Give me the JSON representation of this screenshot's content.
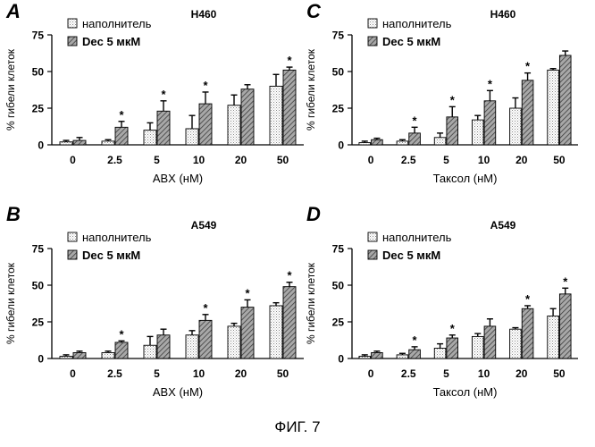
{
  "figure_caption": "ФИГ. 7",
  "colors": {
    "vehicle_fill": "#ffffff",
    "dec_fill": "#9a9a9a",
    "axis": "#000000"
  },
  "chart_data": [
    {
      "panel_letter": "A",
      "type": "bar",
      "title": "H460",
      "xlabel": "ABX (нМ)",
      "ylabel": "% гибели клеток",
      "ylim": [
        0,
        75
      ],
      "yticks": [
        0,
        25,
        50,
        75
      ],
      "categories": [
        "0",
        "2.5",
        "5",
        "10",
        "20",
        "50"
      ],
      "series": [
        {
          "name": "наполнитель",
          "values": [
            2,
            2.5,
            10,
            11,
            27,
            40
          ],
          "errors": [
            1,
            1,
            5,
            9,
            7,
            8
          ]
        },
        {
          "name": "Dec 5 мкМ",
          "values": [
            3,
            12,
            23,
            28,
            38,
            51
          ],
          "errors": [
            2,
            4,
            7,
            8,
            3,
            2
          ]
        }
      ],
      "significance": [
        false,
        true,
        true,
        true,
        false,
        true
      ],
      "significance_mark": "*",
      "legend_position": "top-left"
    },
    {
      "panel_letter": "C",
      "type": "bar",
      "title": "H460",
      "xlabel": "Таксол (нМ)",
      "ylabel": "% гибели клеток",
      "ylim": [
        0,
        75
      ],
      "yticks": [
        0,
        25,
        50,
        75
      ],
      "categories": [
        "0",
        "2.5",
        "5",
        "10",
        "20",
        "50"
      ],
      "series": [
        {
          "name": "наполнитель",
          "values": [
            1.5,
            2.5,
            5,
            17,
            25,
            51
          ],
          "errors": [
            1,
            1,
            3,
            3,
            7,
            1
          ]
        },
        {
          "name": "Dec 5 мкМ",
          "values": [
            3.5,
            8,
            19,
            30,
            44,
            61
          ],
          "errors": [
            1,
            4,
            7,
            7,
            5,
            3
          ]
        }
      ],
      "significance": [
        false,
        true,
        true,
        true,
        true,
        false
      ],
      "significance_mark": "*",
      "legend_position": "top-left"
    },
    {
      "panel_letter": "B",
      "type": "bar",
      "title": "A549",
      "xlabel": "ABX (нМ)",
      "ylabel": "% гибели клеток",
      "ylim": [
        0,
        75
      ],
      "yticks": [
        0,
        25,
        50,
        75
      ],
      "categories": [
        "0",
        "2.5",
        "5",
        "10",
        "20",
        "50"
      ],
      "series": [
        {
          "name": "наполнитель",
          "values": [
            1.5,
            4,
            9,
            16,
            22,
            36
          ],
          "errors": [
            1,
            1,
            6,
            3,
            2,
            2
          ]
        },
        {
          "name": "Dec 5 мкМ",
          "values": [
            4,
            11,
            16,
            26,
            35,
            49
          ],
          "errors": [
            1,
            1,
            4,
            4,
            5,
            3
          ]
        }
      ],
      "significance": [
        false,
        true,
        false,
        true,
        true,
        true
      ],
      "significance_mark": "*",
      "legend_position": "top-left"
    },
    {
      "panel_letter": "D",
      "type": "bar",
      "title": "A549",
      "xlabel": "Таксол (нМ)",
      "ylabel": "% гибели клеток",
      "ylim": [
        0,
        75
      ],
      "yticks": [
        0,
        25,
        50,
        75
      ],
      "categories": [
        "0",
        "2.5",
        "5",
        "10",
        "20",
        "50"
      ],
      "series": [
        {
          "name": "наполнитель",
          "values": [
            1.5,
            2.5,
            7,
            15,
            20,
            29
          ],
          "errors": [
            1,
            1,
            3,
            2,
            1,
            5
          ]
        },
        {
          "name": "Dec 5 мкМ",
          "values": [
            4,
            6,
            14,
            22,
            34,
            44
          ],
          "errors": [
            1,
            2,
            2,
            5,
            2,
            4
          ]
        }
      ],
      "significance": [
        false,
        true,
        true,
        false,
        true,
        true
      ],
      "significance_mark": "*",
      "legend_position": "top-left"
    }
  ]
}
